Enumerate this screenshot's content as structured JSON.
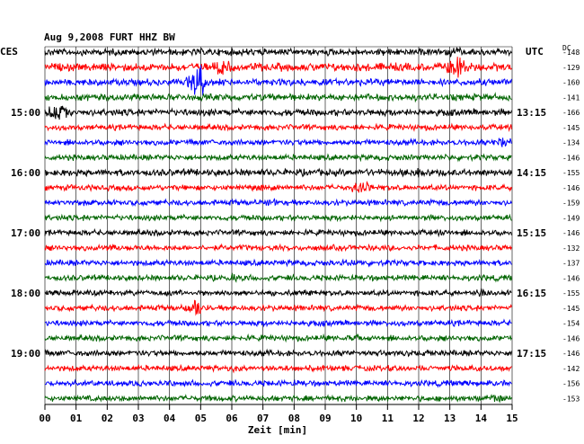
{
  "chart_data": {
    "type": "line",
    "title": "Aug 9,2008   FURT HHZ BW",
    "left_header": "CES",
    "right_header": "UTC",
    "dc_header": "DC",
    "xlabel": "Zeit [min]",
    "xlim": [
      0,
      15
    ],
    "x_ticks": [
      "00",
      "01",
      "02",
      "03",
      "04",
      "05",
      "06",
      "07",
      "08",
      "09",
      "10",
      "11",
      "12",
      "13",
      "14",
      "15"
    ],
    "left_time_labels": [
      {
        "row": 4,
        "text": "15:00"
      },
      {
        "row": 8,
        "text": "16:00"
      },
      {
        "row": 12,
        "text": "17:00"
      },
      {
        "row": 16,
        "text": "18:00"
      },
      {
        "row": 20,
        "text": "19:00"
      }
    ],
    "right_time_labels": [
      {
        "row": 4,
        "text": "13:15"
      },
      {
        "row": 8,
        "text": "14:15"
      },
      {
        "row": 12,
        "text": "15:15"
      },
      {
        "row": 16,
        "text": "16:15"
      },
      {
        "row": 20,
        "text": "17:15"
      }
    ],
    "trace_colors": [
      "#000000",
      "#ff0000",
      "#0000ff",
      "#006400"
    ],
    "traces": [
      {
        "dc": "-148",
        "color": "#000000",
        "amplitude": 3,
        "events": [
          {
            "minute": 13.2,
            "amp": 6
          }
        ]
      },
      {
        "dc": "-129",
        "color": "#ff0000",
        "amplitude": 3.5,
        "events": [
          {
            "minute": 5.7,
            "amp": 9
          },
          {
            "minute": 13.2,
            "amp": 14
          }
        ]
      },
      {
        "dc": "-160",
        "color": "#0000ff",
        "amplitude": 3,
        "events": [
          {
            "minute": 4.9,
            "amp": 18
          }
        ]
      },
      {
        "dc": "-141",
        "color": "#006400",
        "amplitude": 3,
        "events": []
      },
      {
        "dc": "-166",
        "color": "#000000",
        "amplitude": 3,
        "events": [
          {
            "minute": 0.4,
            "amp": 10
          }
        ]
      },
      {
        "dc": "-145",
        "color": "#ff0000",
        "amplitude": 2.5,
        "events": []
      },
      {
        "dc": "-134",
        "color": "#0000ff",
        "amplitude": 2.5,
        "events": [
          {
            "minute": 14.7,
            "amp": 6
          }
        ]
      },
      {
        "dc": "-146",
        "color": "#006400",
        "amplitude": 2.5,
        "events": []
      },
      {
        "dc": "-155",
        "color": "#000000",
        "amplitude": 3,
        "events": [
          {
            "minute": 12,
            "amp": 4
          }
        ]
      },
      {
        "dc": "-146",
        "color": "#ff0000",
        "amplitude": 2.5,
        "events": [
          {
            "minute": 7.1,
            "amp": 5
          },
          {
            "minute": 10.1,
            "amp": 8
          }
        ]
      },
      {
        "dc": "-159",
        "color": "#0000ff",
        "amplitude": 2.5,
        "events": [
          {
            "minute": 7.3,
            "amp": 4
          }
        ]
      },
      {
        "dc": "-149",
        "color": "#006400",
        "amplitude": 2.5,
        "events": [
          {
            "minute": 11.2,
            "amp": 3
          }
        ]
      },
      {
        "dc": "-146",
        "color": "#000000",
        "amplitude": 2.5,
        "events": []
      },
      {
        "dc": "-132",
        "color": "#ff0000",
        "amplitude": 2.5,
        "events": [
          {
            "minute": 2.2,
            "amp": 3
          }
        ]
      },
      {
        "dc": "-137",
        "color": "#0000ff",
        "amplitude": 2.5,
        "events": [
          {
            "minute": 9.8,
            "amp": 4
          }
        ]
      },
      {
        "dc": "-146",
        "color": "#006400",
        "amplitude": 2.5,
        "events": [
          {
            "minute": 6.0,
            "amp": 4
          }
        ]
      },
      {
        "dc": "-155",
        "color": "#000000",
        "amplitude": 2.5,
        "events": [
          {
            "minute": 13.9,
            "amp": 5
          }
        ]
      },
      {
        "dc": "-145",
        "color": "#ff0000",
        "amplitude": 2.5,
        "events": [
          {
            "minute": 4.9,
            "amp": 9
          }
        ]
      },
      {
        "dc": "-154",
        "color": "#0000ff",
        "amplitude": 2.5,
        "events": []
      },
      {
        "dc": "-146",
        "color": "#006400",
        "amplitude": 2.5,
        "events": [
          {
            "minute": 10.0,
            "amp": 3
          }
        ]
      },
      {
        "dc": "-146",
        "color": "#000000",
        "amplitude": 2.5,
        "events": [
          {
            "minute": 12.3,
            "amp": 3
          }
        ]
      },
      {
        "dc": "-142",
        "color": "#ff0000",
        "amplitude": 2.5,
        "events": [
          {
            "minute": 6.1,
            "amp": 4
          }
        ]
      },
      {
        "dc": "-156",
        "color": "#0000ff",
        "amplitude": 2.5,
        "events": [
          {
            "minute": 14.3,
            "amp": 3
          }
        ]
      },
      {
        "dc": "-153",
        "color": "#006400",
        "amplitude": 2.5,
        "events": [
          {
            "minute": 14.5,
            "amp": 5
          }
        ]
      }
    ]
  }
}
